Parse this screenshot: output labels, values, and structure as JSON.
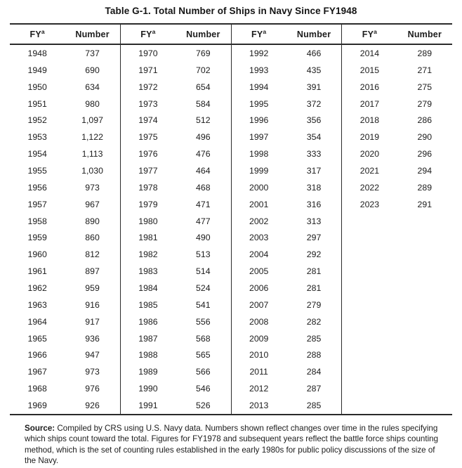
{
  "title": "Table G-1. Total Number of Ships in Navy Since FY1948",
  "table": {
    "header": {
      "fy": "FY",
      "fy_sup": "a",
      "number": "Number"
    },
    "groups": [
      {
        "rows": [
          {
            "fy": "1948",
            "number": "737"
          },
          {
            "fy": "1949",
            "number": "690"
          },
          {
            "fy": "1950",
            "number": "634"
          },
          {
            "fy": "1951",
            "number": "980"
          },
          {
            "fy": "1952",
            "number": "1,097"
          },
          {
            "fy": "1953",
            "number": "1,122"
          },
          {
            "fy": "1954",
            "number": "1,113"
          },
          {
            "fy": "1955",
            "number": "1,030"
          },
          {
            "fy": "1956",
            "number": "973"
          },
          {
            "fy": "1957",
            "number": "967"
          },
          {
            "fy": "1958",
            "number": "890"
          },
          {
            "fy": "1959",
            "number": "860"
          },
          {
            "fy": "1960",
            "number": "812"
          },
          {
            "fy": "1961",
            "number": "897"
          },
          {
            "fy": "1962",
            "number": "959"
          },
          {
            "fy": "1963",
            "number": "916"
          },
          {
            "fy": "1964",
            "number": "917"
          },
          {
            "fy": "1965",
            "number": "936"
          },
          {
            "fy": "1966",
            "number": "947"
          },
          {
            "fy": "1967",
            "number": "973"
          },
          {
            "fy": "1968",
            "number": "976"
          },
          {
            "fy": "1969",
            "number": "926"
          }
        ]
      },
      {
        "rows": [
          {
            "fy": "1970",
            "number": "769"
          },
          {
            "fy": "1971",
            "number": "702"
          },
          {
            "fy": "1972",
            "number": "654"
          },
          {
            "fy": "1973",
            "number": "584"
          },
          {
            "fy": "1974",
            "number": "512"
          },
          {
            "fy": "1975",
            "number": "496"
          },
          {
            "fy": "1976",
            "number": "476"
          },
          {
            "fy": "1977",
            "number": "464"
          },
          {
            "fy": "1978",
            "number": "468"
          },
          {
            "fy": "1979",
            "number": "471"
          },
          {
            "fy": "1980",
            "number": "477"
          },
          {
            "fy": "1981",
            "number": "490"
          },
          {
            "fy": "1982",
            "number": "513"
          },
          {
            "fy": "1983",
            "number": "514"
          },
          {
            "fy": "1984",
            "number": "524"
          },
          {
            "fy": "1985",
            "number": "541"
          },
          {
            "fy": "1986",
            "number": "556"
          },
          {
            "fy": "1987",
            "number": "568"
          },
          {
            "fy": "1988",
            "number": "565"
          },
          {
            "fy": "1989",
            "number": "566"
          },
          {
            "fy": "1990",
            "number": "546"
          },
          {
            "fy": "1991",
            "number": "526"
          }
        ]
      },
      {
        "rows": [
          {
            "fy": "1992",
            "number": "466"
          },
          {
            "fy": "1993",
            "number": "435"
          },
          {
            "fy": "1994",
            "number": "391"
          },
          {
            "fy": "1995",
            "number": "372"
          },
          {
            "fy": "1996",
            "number": "356"
          },
          {
            "fy": "1997",
            "number": "354"
          },
          {
            "fy": "1998",
            "number": "333"
          },
          {
            "fy": "1999",
            "number": "317"
          },
          {
            "fy": "2000",
            "number": "318"
          },
          {
            "fy": "2001",
            "number": "316"
          },
          {
            "fy": "2002",
            "number": "313"
          },
          {
            "fy": "2003",
            "number": "297"
          },
          {
            "fy": "2004",
            "number": "292"
          },
          {
            "fy": "2005",
            "number": "281"
          },
          {
            "fy": "2006",
            "number": "281"
          },
          {
            "fy": "2007",
            "number": "279"
          },
          {
            "fy": "2008",
            "number": "282"
          },
          {
            "fy": "2009",
            "number": "285"
          },
          {
            "fy": "2010",
            "number": "288"
          },
          {
            "fy": "2011",
            "number": "284"
          },
          {
            "fy": "2012",
            "number": "287"
          },
          {
            "fy": "2013",
            "number": "285"
          }
        ]
      },
      {
        "rows": [
          {
            "fy": "2014",
            "number": "289"
          },
          {
            "fy": "2015",
            "number": "271"
          },
          {
            "fy": "2016",
            "number": "275"
          },
          {
            "fy": "2017",
            "number": "279"
          },
          {
            "fy": "2018",
            "number": "286"
          },
          {
            "fy": "2019",
            "number": "290"
          },
          {
            "fy": "2020",
            "number": "296"
          },
          {
            "fy": "2021",
            "number": "294"
          },
          {
            "fy": "2022",
            "number": "289"
          },
          {
            "fy": "2023",
            "number": "291"
          }
        ]
      }
    ]
  },
  "footer": {
    "source_label": "Source:",
    "source_text": " Compiled by CRS using U.S. Navy data. Numbers shown reflect changes over time in the rules specifying which ships count toward the total. Figures for FY1978 and subsequent years reflect the battle force ships counting method, which is the set of counting rules established in the early 1980s for public policy discussions of the size of the Navy."
  },
  "colors": {
    "background": "#ffffff",
    "text": "#1c1c1c",
    "rule": "#2b2b2b"
  }
}
